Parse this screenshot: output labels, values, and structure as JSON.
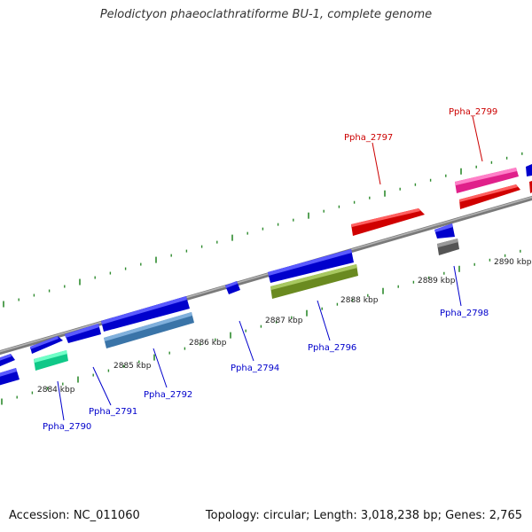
{
  "title": "Pelodictyon phaeoclathratiforme BU-1, complete genome",
  "footer": {
    "accession": "Accession: NC_011060",
    "summary": "Topology: circular; Length: 3,018,238 bp; Genes: 2,765"
  },
  "colors": {
    "backbone": "#888888",
    "tick": "#2e8b2e",
    "label_blue": "#0000cc",
    "label_red": "#cc0000"
  },
  "kbp_labels": [
    "2884 kbp",
    "2885 kbp",
    "2886 kbp",
    "2887 kbp",
    "2888 kbp",
    "2889 kbp",
    "2890 kbp"
  ],
  "gene_labels": [
    {
      "id": "Ppha_2790",
      "color": "blue"
    },
    {
      "id": "Ppha_2791",
      "color": "blue"
    },
    {
      "id": "Ppha_2792",
      "color": "blue"
    },
    {
      "id": "Ppha_2794",
      "color": "blue"
    },
    {
      "id": "Ppha_2796",
      "color": "blue"
    },
    {
      "id": "Ppha_2797",
      "color": "red"
    },
    {
      "id": "Ppha_2798",
      "color": "blue"
    },
    {
      "id": "Ppha_2799",
      "color": "red"
    }
  ]
}
